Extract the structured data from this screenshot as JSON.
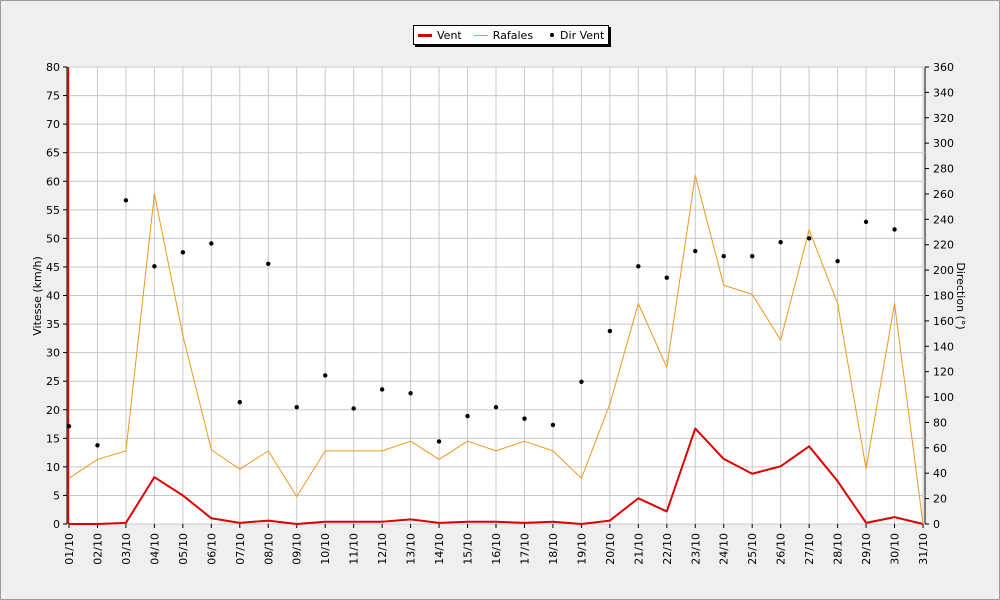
{
  "chart_data": {
    "type": "line",
    "xlabel": "",
    "ylabel": "Vitesse (km/h)",
    "y2label": "Direction (°)",
    "ylim": [
      0,
      80
    ],
    "y2lim": [
      0,
      360
    ],
    "yticks": [
      "0",
      "5",
      "10",
      "15",
      "20",
      "25",
      "30",
      "35",
      "40",
      "45",
      "50",
      "55",
      "60",
      "65",
      "70",
      "75",
      "80"
    ],
    "y2ticks": [
      "0",
      "20",
      "40",
      "60",
      "80",
      "100",
      "120",
      "140",
      "160",
      "180",
      "200",
      "220",
      "240",
      "260",
      "280",
      "300",
      "320",
      "340",
      "360"
    ],
    "categories": [
      "01/10",
      "02/10",
      "03/10",
      "04/10",
      "05/10",
      "06/10",
      "07/10",
      "08/10",
      "09/10",
      "10/10",
      "11/10",
      "12/10",
      "13/10",
      "14/10",
      "15/10",
      "16/10",
      "17/10",
      "18/10",
      "19/10",
      "20/10",
      "21/10",
      "22/10",
      "23/10",
      "24/10",
      "25/10",
      "26/10",
      "27/10",
      "28/10",
      "29/10",
      "30/10",
      "31/10"
    ],
    "grid": true,
    "legend_position": "top-center",
    "series": [
      {
        "name": "Vent",
        "kind": "line",
        "axis": "left",
        "color": "#dd0000",
        "values": [
          0,
          0,
          0.2,
          8.2,
          5,
          1,
          0.2,
          0.6,
          0,
          0.4,
          0.4,
          0.4,
          0.8,
          0.2,
          0.4,
          0.4,
          0.2,
          0.4,
          0,
          0.6,
          4.5,
          2.2,
          16.7,
          11.4,
          8.8,
          10.1,
          13.6,
          7.5,
          0.2,
          1.2,
          0
        ]
      },
      {
        "name": "Rafales",
        "kind": "line",
        "axis": "left",
        "color": "#f0961e",
        "values": [
          8,
          11.3,
          12.8,
          57.8,
          33,
          13,
          9.6,
          12.8,
          4.8,
          12.8,
          12.8,
          12.8,
          14.5,
          11.3,
          14.5,
          12.8,
          14.5,
          12.8,
          8,
          21,
          38.6,
          27.4,
          61,
          41.8,
          40.2,
          32.2,
          51.5,
          38.6,
          9.7,
          38.6,
          0
        ]
      },
      {
        "name": "Dir Vent",
        "kind": "scatter",
        "axis": "right",
        "color": "#000000",
        "values": [
          77,
          62,
          255,
          203,
          214,
          221,
          96,
          205,
          92,
          117,
          91,
          106,
          103,
          65,
          85,
          92,
          83,
          78,
          112,
          152,
          203,
          194,
          215,
          211,
          211,
          222,
          225,
          207,
          238,
          232,
          null
        ]
      }
    ]
  }
}
